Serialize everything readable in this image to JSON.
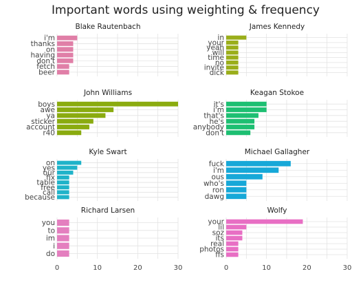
{
  "chart_data": {
    "type": "bar",
    "orientation": "horizontal",
    "title": "Important words using weighting & frequency",
    "xlim": [
      0,
      30
    ],
    "xticks": [
      "0",
      "10",
      "20",
      "30"
    ],
    "grid": true,
    "panels": [
      {
        "name": "Blake Rautenbach",
        "color": "#e07fa7",
        "categories": [
          "i'm",
          "thanks",
          "on",
          "having",
          "don't",
          "fetch",
          "beer"
        ],
        "values": [
          5,
          4,
          4,
          4,
          4,
          3,
          3
        ]
      },
      {
        "name": "James Kennedy",
        "color": "#9aae1a",
        "categories": [
          "in",
          "your",
          "yeah",
          "will",
          "time",
          "no",
          "invite",
          "dick"
        ],
        "values": [
          5,
          3,
          3,
          3,
          3,
          3,
          3,
          3
        ]
      },
      {
        "name": "John Williams",
        "color": "#8aab0f",
        "categories": [
          "boys",
          "awe",
          "ya",
          "sticker",
          "account",
          "r40"
        ],
        "values": [
          30,
          14,
          12,
          9,
          8,
          6
        ]
      },
      {
        "name": "Keagan Stokoe",
        "color": "#1dbf72",
        "categories": [
          "it's",
          "i'm",
          "that's",
          "he's",
          "anybody",
          "don't"
        ],
        "values": [
          10,
          10,
          8,
          7,
          7,
          6
        ]
      },
      {
        "name": "Kyle Swart",
        "color": "#1fb3c9",
        "categories": [
          "on",
          "yes",
          "our",
          "fix",
          "table",
          "free",
          "call",
          "because"
        ],
        "values": [
          6,
          5,
          4,
          3,
          3,
          3,
          3,
          3
        ]
      },
      {
        "name": "Michael Gallagher",
        "color": "#17a8d8",
        "categories": [
          "fuck",
          "i'm",
          "ous",
          "who's",
          "ron",
          "dawg"
        ],
        "values": [
          16,
          13,
          9,
          5,
          5,
          5
        ]
      },
      {
        "name": "Richard Larsen",
        "color": "#e47fbf",
        "categories": [
          "you",
          "to",
          "im",
          "i",
          "do"
        ],
        "values": [
          3,
          3,
          3,
          3,
          3
        ]
      },
      {
        "name": "Wolfy",
        "color": "#e86fc4",
        "categories": [
          "your",
          "lil",
          "soz",
          "its",
          "real",
          "photos",
          "ffs"
        ],
        "values": [
          19,
          5,
          4,
          4,
          3,
          3,
          3
        ]
      }
    ]
  }
}
